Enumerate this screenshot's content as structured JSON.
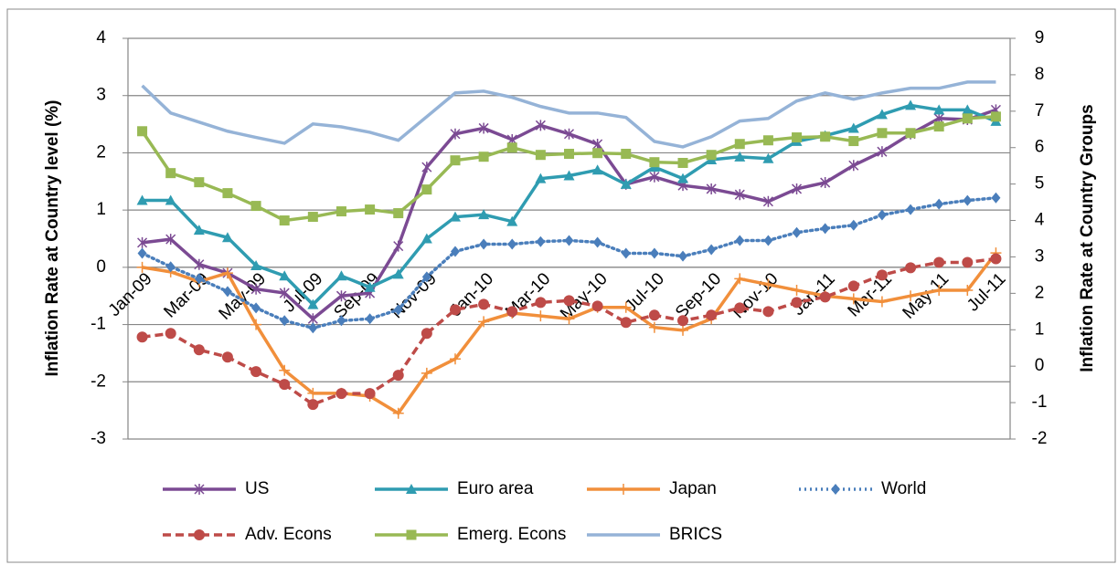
{
  "chart_data": {
    "type": "line",
    "y_label": "Inflation Rate at Country level (%)",
    "y2_label": "Inflation Rate at Country Groups",
    "categories": [
      "Jan-09",
      null,
      "Mar-09",
      null,
      "May-09",
      null,
      "Jul-09",
      null,
      "Sep-09",
      null,
      "Nov-09",
      null,
      "Jan-10",
      null,
      "Mar-10",
      null,
      "May-10",
      null,
      "Jul-10",
      null,
      "Sep-10",
      null,
      "Nov-10",
      null,
      "Jan-11",
      null,
      "Mar-11",
      null,
      "May-11",
      null,
      "Jul-11"
    ],
    "ylim": [
      -3,
      4
    ],
    "yticks": [
      -3,
      -2,
      -1,
      0,
      1,
      2,
      3,
      4
    ],
    "y2lim": [
      -2,
      9
    ],
    "y2ticks": [
      -2,
      -1,
      0,
      1,
      2,
      3,
      4,
      5,
      6,
      7,
      8,
      9
    ],
    "grid": true,
    "legend": "bottom",
    "series": [
      {
        "name": "US",
        "color": "#7b4a93",
        "marker": "star",
        "dash": "solid",
        "values": [
          0.43,
          0.49,
          0.05,
          -0.1,
          -0.38,
          -0.45,
          -0.9,
          -0.5,
          -0.45,
          0.37,
          1.75,
          2.33,
          2.43,
          2.23,
          2.48,
          2.33,
          2.15,
          1.45,
          1.58,
          1.43,
          1.37,
          1.27,
          1.15,
          1.37,
          1.48,
          1.78,
          2.02,
          2.33,
          2.6,
          2.58,
          2.75
        ]
      },
      {
        "name": "Euro area",
        "color": "#2f9cb1",
        "marker": "triangle",
        "dash": "solid",
        "values": [
          1.17,
          1.17,
          0.65,
          0.52,
          0.03,
          -0.15,
          -0.65,
          -0.15,
          -0.35,
          -0.12,
          0.5,
          0.88,
          0.92,
          0.8,
          1.55,
          1.6,
          1.7,
          1.45,
          1.75,
          1.55,
          1.88,
          1.93,
          1.9,
          2.2,
          2.3,
          2.43,
          2.67,
          2.83,
          2.75,
          2.75,
          2.55
        ]
      },
      {
        "name": "Japan",
        "color": "#f18f3b",
        "marker": "plus",
        "dash": "solid",
        "values": [
          0,
          -0.08,
          -0.25,
          -0.1,
          -1.0,
          -1.8,
          -2.2,
          -2.2,
          -2.25,
          -2.55,
          -1.85,
          -1.6,
          -0.95,
          -0.8,
          -0.85,
          -0.9,
          -0.7,
          -0.7,
          -1.05,
          -1.1,
          -0.9,
          -0.2,
          -0.3,
          -0.4,
          -0.5,
          -0.55,
          -0.6,
          -0.5,
          -0.4,
          -0.4,
          0.25
        ]
      },
      {
        "name": "World",
        "color": "#4a7ebb",
        "marker": "diamond",
        "dash": "dot",
        "axis": "y2",
        "values": [
          3.1,
          2.73,
          2.4,
          2.05,
          1.6,
          1.25,
          1.05,
          1.25,
          1.3,
          1.55,
          2.45,
          3.15,
          3.35,
          3.35,
          3.42,
          3.45,
          3.4,
          3.1,
          3.1,
          3.02,
          3.2,
          3.45,
          3.45,
          3.67,
          3.78,
          3.87,
          4.15,
          4.3,
          4.45,
          4.55,
          4.62
        ]
      },
      {
        "name": "Adv. Econs",
        "color": "#be4b48",
        "marker": "circle",
        "dash": "dash",
        "axis": "y2",
        "values": [
          0.8,
          0.9,
          0.45,
          0.25,
          -0.15,
          -0.5,
          -1.05,
          -0.75,
          -0.75,
          -0.25,
          0.9,
          1.55,
          1.7,
          1.5,
          1.75,
          1.8,
          1.65,
          1.2,
          1.4,
          1.25,
          1.4,
          1.6,
          1.5,
          1.75,
          1.9,
          2.2,
          2.5,
          2.7,
          2.85,
          2.85,
          2.95
        ]
      },
      {
        "name": "Emerg. Econs",
        "color": "#98b954",
        "marker": "square",
        "dash": "solid",
        "axis": "y2",
        "values": [
          6.45,
          5.3,
          5.05,
          4.75,
          4.4,
          4.0,
          4.1,
          4.25,
          4.3,
          4.2,
          4.85,
          5.65,
          5.75,
          6.0,
          5.8,
          5.83,
          5.85,
          5.83,
          5.6,
          5.58,
          5.8,
          6.1,
          6.2,
          6.28,
          6.3,
          6.18,
          6.4,
          6.4,
          6.58,
          6.8,
          6.85
        ]
      },
      {
        "name": "BRICS",
        "color": "#95b3d7",
        "marker": "none",
        "dash": "solid",
        "axis": "y2",
        "values": [
          7.7,
          6.95,
          6.7,
          6.45,
          6.28,
          6.12,
          6.65,
          6.57,
          6.42,
          6.2,
          6.85,
          7.5,
          7.55,
          7.38,
          7.13,
          6.95,
          6.95,
          6.83,
          6.17,
          6.02,
          6.3,
          6.73,
          6.8,
          7.28,
          7.5,
          7.33,
          7.5,
          7.63,
          7.63,
          7.8,
          7.8
        ]
      }
    ]
  }
}
